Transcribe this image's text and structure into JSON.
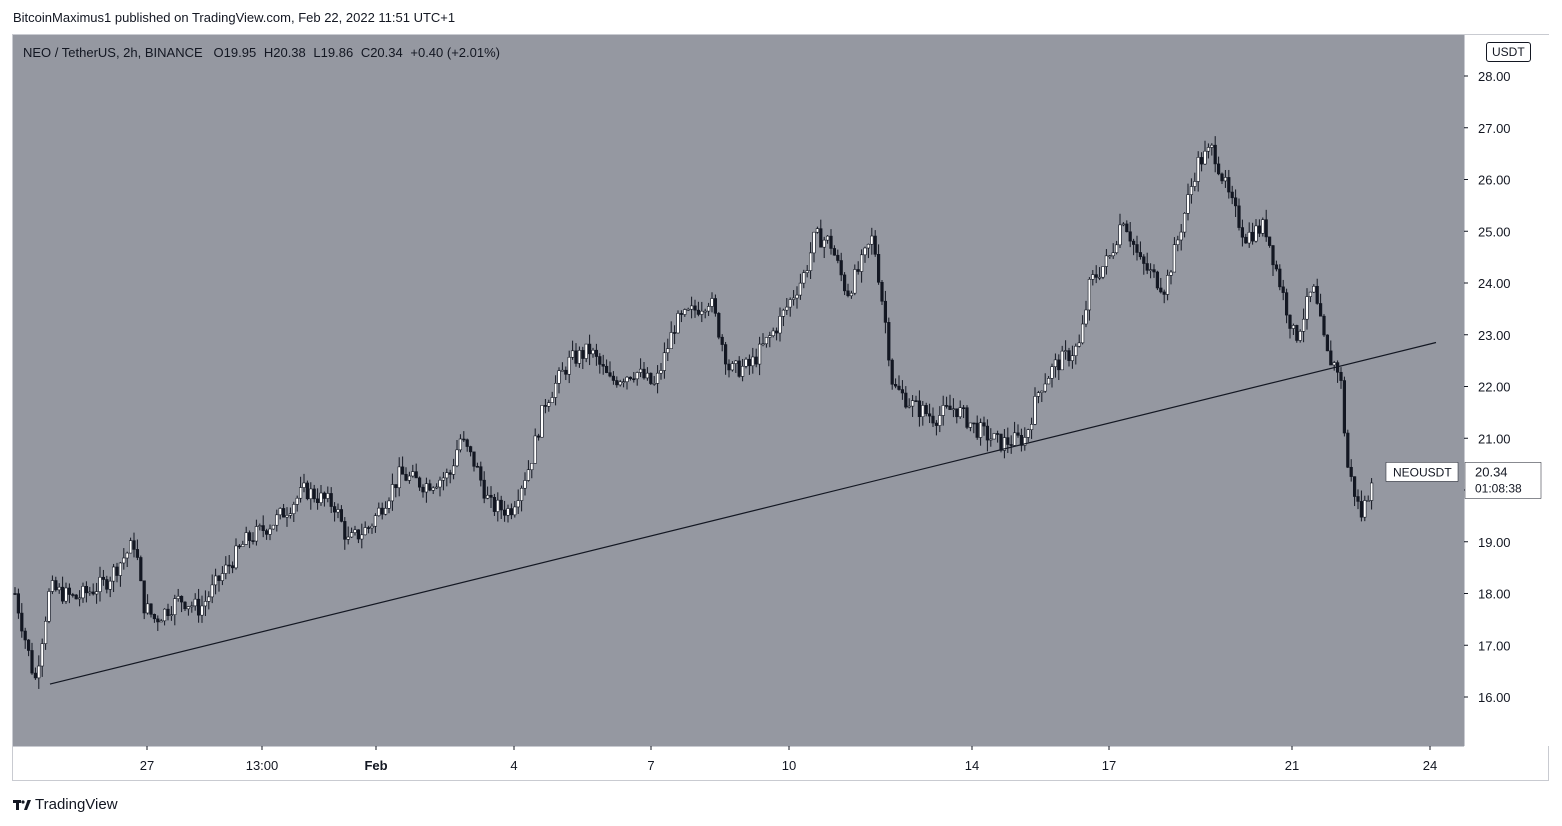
{
  "header": {
    "text": "BitcoinMaximus1 published on TradingView.com, Feb 22, 2022 11:51 UTC+1"
  },
  "legend": {
    "symbol": "NEO / TetherUS, 2h, BINANCE",
    "o_label": "O",
    "o_value": "19.95",
    "h_label": "H",
    "h_value": "20.38",
    "l_label": "L",
    "l_value": "19.86",
    "c_label": "C",
    "c_value": "20.34",
    "change": "+0.40 (+2.01%)"
  },
  "currency": "USDT",
  "last_price": {
    "symbol": "NEOUSDT",
    "price": "20.34",
    "countdown": "01:08:38"
  },
  "footer": {
    "brand": "TradingView"
  },
  "colors": {
    "plot_bg": "#9598a1",
    "candle_up_body": "#ffffff",
    "candle_down_body": "#131722",
    "wick": "#131722",
    "trendline": "#131722"
  },
  "chart_data": {
    "type": "candlestick",
    "title": "NEO / TetherUS, 2h, BINANCE",
    "ylabel": "USDT",
    "ylim": [
      15.0,
      28.6
    ],
    "y_ticks": [
      16,
      17,
      18,
      19,
      20,
      21,
      22,
      23,
      24,
      25,
      26,
      27,
      28
    ],
    "y_tick_labels": [
      "16.00",
      "17.00",
      "18.00",
      "19.00",
      "20.00",
      "21.00",
      "22.00",
      "23.00",
      "24.00",
      "25.00",
      "26.00",
      "27.00",
      "28.00"
    ],
    "x_tick_labels": [
      "27",
      "13:00",
      "Feb",
      "4",
      "7",
      "10",
      "14",
      "17",
      "21",
      "24"
    ],
    "price_path": [
      [
        0,
        18.0
      ],
      [
        20,
        16.3
      ],
      [
        35,
        18.1
      ],
      [
        60,
        17.9
      ],
      [
        90,
        18.2
      ],
      [
        120,
        19.0
      ],
      [
        128,
        17.8
      ],
      [
        140,
        17.5
      ],
      [
        165,
        17.9
      ],
      [
        185,
        17.7
      ],
      [
        205,
        18.3
      ],
      [
        230,
        19.0
      ],
      [
        260,
        19.4
      ],
      [
        290,
        20.0
      ],
      [
        320,
        19.7
      ],
      [
        333,
        19.0
      ],
      [
        355,
        19.3
      ],
      [
        385,
        20.3
      ],
      [
        410,
        20.1
      ],
      [
        435,
        20.3
      ],
      [
        445,
        21.0
      ],
      [
        460,
        20.5
      ],
      [
        475,
        19.7
      ],
      [
        495,
        19.6
      ],
      [
        515,
        20.5
      ],
      [
        530,
        21.7
      ],
      [
        555,
        22.5
      ],
      [
        575,
        22.7
      ],
      [
        595,
        22.1
      ],
      [
        620,
        22.3
      ],
      [
        640,
        22.0
      ],
      [
        660,
        23.2
      ],
      [
        695,
        23.7
      ],
      [
        715,
        22.3
      ],
      [
        735,
        22.4
      ],
      [
        760,
        23.1
      ],
      [
        790,
        24.2
      ],
      [
        800,
        24.9
      ],
      [
        815,
        24.8
      ],
      [
        832,
        23.8
      ],
      [
        845,
        24.3
      ],
      [
        858,
        24.9
      ],
      [
        870,
        23.3
      ],
      [
        878,
        22.0
      ],
      [
        900,
        21.6
      ],
      [
        920,
        21.4
      ],
      [
        940,
        21.6
      ],
      [
        960,
        21.2
      ],
      [
        985,
        20.9
      ],
      [
        1010,
        21.0
      ],
      [
        1025,
        22.0
      ],
      [
        1040,
        22.4
      ],
      [
        1065,
        22.8
      ],
      [
        1075,
        24.0
      ],
      [
        1095,
        24.5
      ],
      [
        1108,
        25.3
      ],
      [
        1125,
        24.4
      ],
      [
        1150,
        23.9
      ],
      [
        1165,
        25.0
      ],
      [
        1182,
        26.3
      ],
      [
        1198,
        26.6
      ],
      [
        1215,
        25.6
      ],
      [
        1230,
        24.9
      ],
      [
        1250,
        25.1
      ],
      [
        1265,
        24.0
      ],
      [
        1280,
        22.9
      ],
      [
        1298,
        23.9
      ],
      [
        1312,
        22.6
      ],
      [
        1325,
        22.3
      ],
      [
        1332,
        20.5
      ],
      [
        1346,
        19.5
      ],
      [
        1360,
        20.34
      ]
    ],
    "trendline": {
      "from": [
        37,
        16.25
      ],
      "to": [
        1423,
        22.85
      ],
      "color": "#131722"
    }
  }
}
